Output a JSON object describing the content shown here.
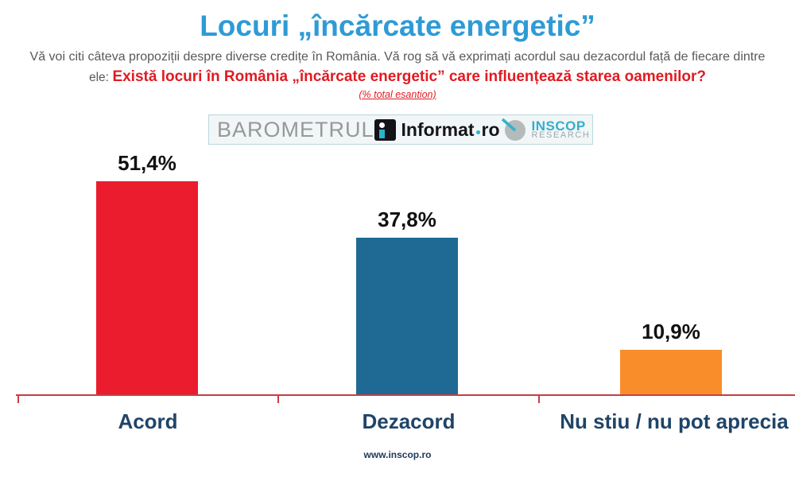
{
  "header": {
    "title": "Locuri „încărcate energetic”",
    "intro_line": "Vă voi citi câteva propoziții despre diverse credițe în România. Vă rog să vă exprimați acordul sau dezacordul față de fiecare dintre",
    "question_prefix": "ele:",
    "question": "Există locuri în România „încărcate energetic” care influențează starea oamenilor?",
    "sample_note": "(% total esantion)"
  },
  "branding": {
    "barometrul": "BAROMETRUL",
    "informat_name": "Informat",
    "informat_tld": "ro",
    "inscop_line1": "INSCOP",
    "inscop_line2": "RESEARCH"
  },
  "chart_data": {
    "type": "bar",
    "title": "Locuri „încărcate energetic”",
    "categories": [
      "Acord",
      "Dezacord",
      "Nu stiu / nu pot aprecia"
    ],
    "values": [
      51.4,
      37.8,
      10.9
    ],
    "value_labels": [
      "51,4%",
      "37,8%",
      "10,9%"
    ],
    "bar_colors": [
      "#ea1c2d",
      "#1e6a94",
      "#f88d2a"
    ],
    "xlabel": "",
    "ylabel": "",
    "ylim": [
      0,
      55
    ],
    "grid": false,
    "legend": "none",
    "axis_line_color": "#c83e46",
    "data_label_position": "above-bar"
  },
  "colors": {
    "title_blue": "#2e9bd6",
    "subtitle_gray": "#595959",
    "accent_red": "#e01b22",
    "category_navy": "#1f4468",
    "logo_teal": "#35aecb",
    "logo_gray": "#97989a"
  },
  "footer": {
    "website": "www.inscop.ro"
  }
}
